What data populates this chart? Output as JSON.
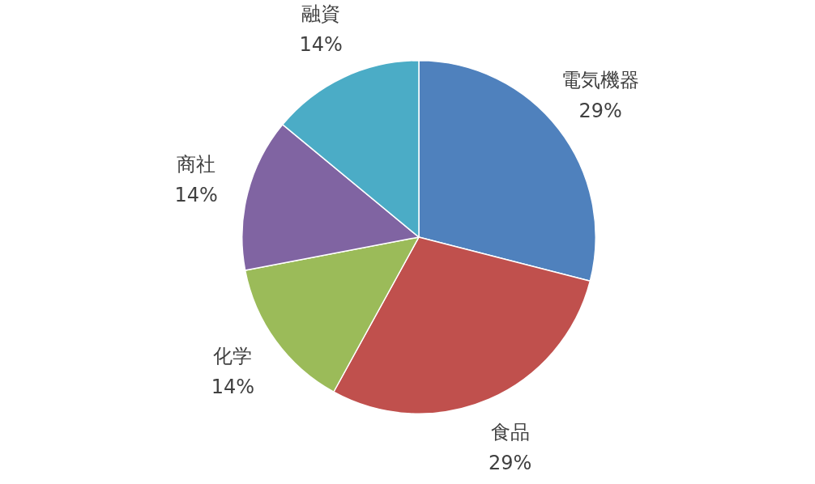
{
  "chart_data": {
    "type": "pie",
    "categories": [
      "電気機器",
      "食品",
      "化学",
      "商社",
      "融資"
    ],
    "values": [
      29,
      29,
      14,
      14,
      14
    ],
    "value_labels": [
      "29%",
      "29%",
      "14%",
      "14%",
      "14%"
    ],
    "colors": [
      "#4f81bd",
      "#c0504d",
      "#9bbb59",
      "#8064a2",
      "#4bacc6"
    ],
    "legend": false
  }
}
